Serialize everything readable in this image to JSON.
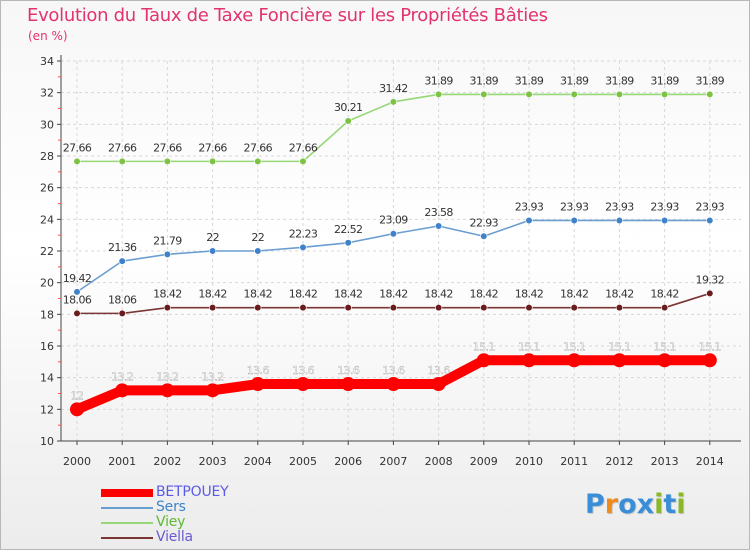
{
  "header": {
    "title": "Evolution du Taux de Taxe Foncière sur les Propriétés Bâties",
    "unit": "(en %)"
  },
  "colors": {
    "title": "#e2336e",
    "axis": "#444444",
    "grid": "#d8d8d8",
    "tick_marks": "#ff5050"
  },
  "logo": {
    "text": "Proxiti",
    "letters": [
      "P",
      "r",
      "o",
      "x",
      "i",
      "t",
      "i"
    ],
    "colors": [
      "#3a8ed8",
      "#f08a1c",
      "#3a8ed8",
      "#3a8ed8",
      "#8ab82a",
      "#3a8ed8",
      "#8ab82a"
    ]
  },
  "chart_data": {
    "type": "line",
    "title": "Evolution du Taux de Taxe Foncière sur les Propriétés Bâties",
    "ylabel": "(en %)",
    "xlabel": "",
    "categories": [
      "2000",
      "2001",
      "2002",
      "2003",
      "2004",
      "2005",
      "2006",
      "2007",
      "2008",
      "2009",
      "2010",
      "2011",
      "2012",
      "2013",
      "2014"
    ],
    "ylim": [
      10,
      34
    ],
    "yticks": [
      "10",
      "12",
      "14",
      "16",
      "18",
      "20",
      "22",
      "24",
      "26",
      "28",
      "30",
      "32",
      "34"
    ],
    "grid": true,
    "legend_position": "bottom-left",
    "series": [
      {
        "name": "BETPOUEY",
        "color": "#ff0000",
        "marker": "#ff0000",
        "label_color": "#ffffff",
        "weight": "heavy",
        "values": [
          12,
          13.2,
          13.2,
          13.2,
          13.6,
          13.6,
          13.6,
          13.6,
          13.6,
          15.1,
          15.1,
          15.1,
          15.1,
          15.1,
          15.1
        ],
        "labels": [
          "12",
          "13.2",
          "13.2",
          "13.2",
          "13.6",
          "13.6",
          "13.6",
          "13.6",
          "13.6",
          "15.1",
          "15.1",
          "15.1",
          "15.1",
          "15.1",
          "15.1"
        ]
      },
      {
        "name": "Sers",
        "color": "#6a9ed0",
        "marker": "#3f82c9",
        "label_color": "#333333",
        "weight": "thin",
        "values": [
          19.42,
          21.36,
          21.79,
          22,
          22,
          22.23,
          22.52,
          23.09,
          23.58,
          22.93,
          23.93,
          23.93,
          23.93,
          23.93,
          23.93
        ],
        "labels": [
          "19.42",
          "21.36",
          "21.79",
          "22",
          "22",
          "22.23",
          "22.52",
          "23.09",
          "23.58",
          "22.93",
          "23.93",
          "23.93",
          "23.93",
          "23.93",
          "23.93"
        ]
      },
      {
        "name": "Viey",
        "color": "#96d777",
        "marker": "#7cc243",
        "label_color": "#333333",
        "weight": "thin",
        "values": [
          27.66,
          27.66,
          27.66,
          27.66,
          27.66,
          27.66,
          30.21,
          31.42,
          31.89,
          31.89,
          31.89,
          31.89,
          31.89,
          31.89,
          31.89
        ],
        "labels": [
          "27.66",
          "27.66",
          "27.66",
          "27.66",
          "27.66",
          "27.66",
          "30.21",
          "31.42",
          "31.89",
          "31.89",
          "31.89",
          "31.89",
          "31.89",
          "31.89",
          "31.89"
        ]
      },
      {
        "name": "Viella",
        "color": "#7a3535",
        "marker": "#6a1c1c",
        "label_color": "#333333",
        "weight": "thin",
        "values": [
          18.06,
          18.06,
          18.42,
          18.42,
          18.42,
          18.42,
          18.42,
          18.42,
          18.42,
          18.42,
          18.42,
          18.42,
          18.42,
          18.42,
          19.32
        ],
        "labels": [
          "18.06",
          "18.06",
          "18.42",
          "18.42",
          "18.42",
          "18.42",
          "18.42",
          "18.42",
          "18.42",
          "18.42",
          "18.42",
          "18.42",
          "18.42",
          "18.42",
          "19.32"
        ]
      }
    ]
  }
}
